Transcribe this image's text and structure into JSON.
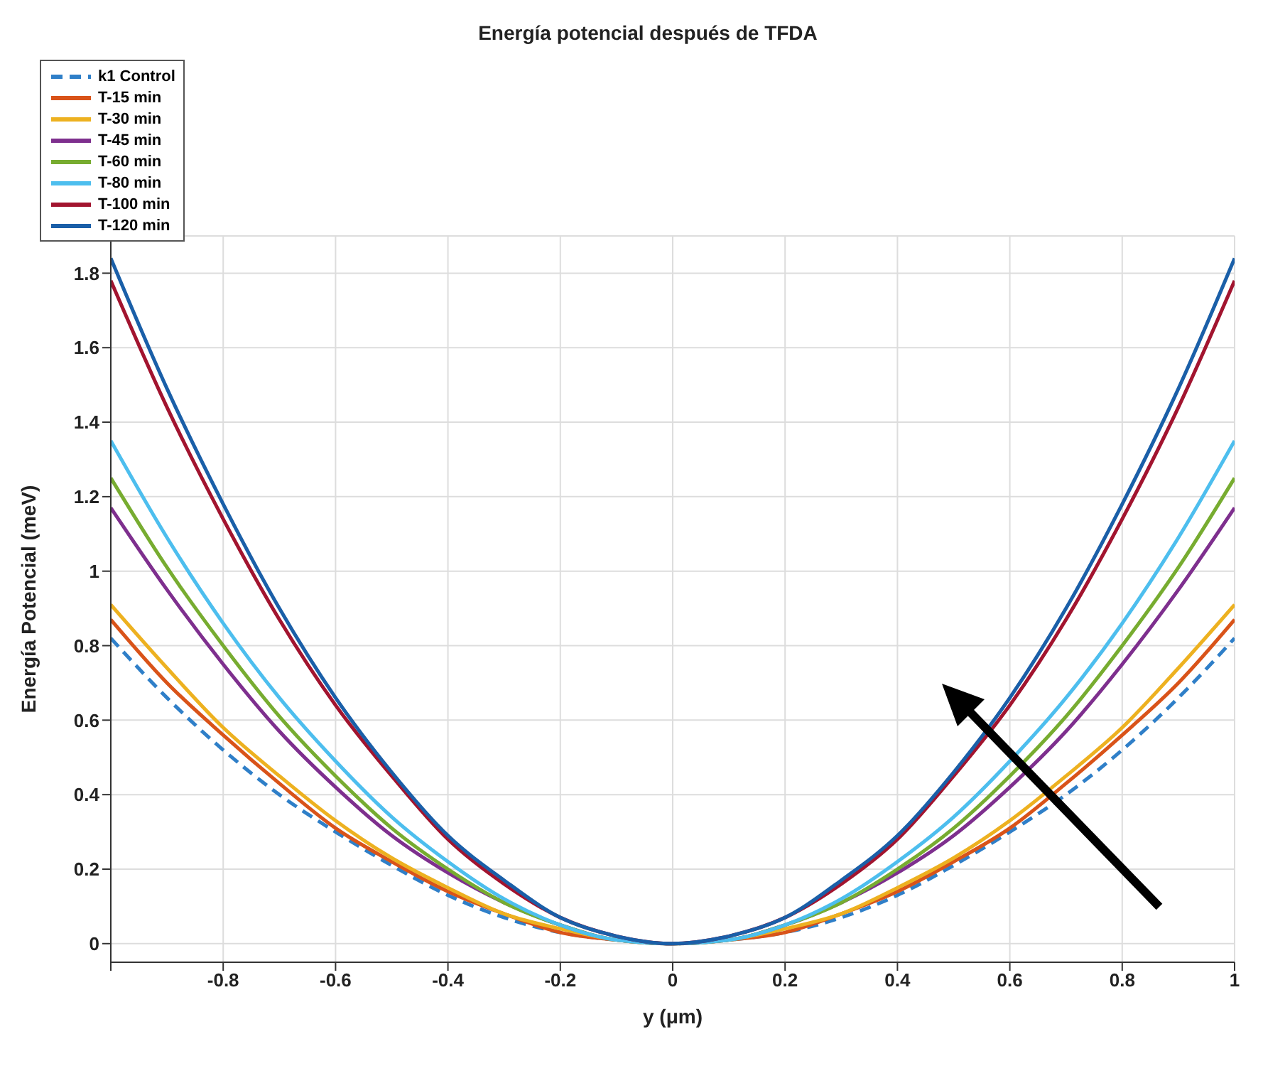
{
  "chart_data": {
    "type": "line",
    "title": "Energía potencial después de TFDA",
    "xlabel": "y (μm)",
    "ylabel": "Energía Potencial (meV)",
    "x": [
      -1,
      -0.9,
      -0.8,
      -0.7,
      -0.6,
      -0.5,
      -0.4,
      -0.3,
      -0.2,
      -0.1,
      0,
      0.1,
      0.2,
      0.3,
      0.4,
      0.5,
      0.6,
      0.7,
      0.8,
      0.9,
      1
    ],
    "series": [
      {
        "name": "k1 Control",
        "color": "#2f7fc8",
        "line_style": "dashed",
        "values": [
          0.82,
          0.66,
          0.52,
          0.4,
          0.3,
          0.21,
          0.13,
          0.07,
          0.03,
          0.01,
          0,
          0.01,
          0.03,
          0.07,
          0.13,
          0.21,
          0.3,
          0.4,
          0.52,
          0.66,
          0.82
        ]
      },
      {
        "name": "T-15 min",
        "color": "#d95319",
        "values": [
          0.87,
          0.7,
          0.56,
          0.43,
          0.31,
          0.22,
          0.14,
          0.08,
          0.03,
          0.01,
          0,
          0.01,
          0.03,
          0.08,
          0.14,
          0.22,
          0.31,
          0.43,
          0.56,
          0.7,
          0.87
        ]
      },
      {
        "name": "T-30 min",
        "color": "#edb120",
        "values": [
          0.91,
          0.74,
          0.58,
          0.45,
          0.33,
          0.23,
          0.15,
          0.08,
          0.04,
          0.01,
          0,
          0.01,
          0.04,
          0.08,
          0.15,
          0.23,
          0.33,
          0.45,
          0.58,
          0.74,
          0.91
        ]
      },
      {
        "name": "T-45 min",
        "color": "#7e2f8e",
        "values": [
          1.17,
          0.95,
          0.75,
          0.57,
          0.42,
          0.29,
          0.19,
          0.11,
          0.05,
          0.01,
          0,
          0.01,
          0.05,
          0.11,
          0.19,
          0.29,
          0.42,
          0.57,
          0.75,
          0.95,
          1.17
        ]
      },
      {
        "name": "T-60 min",
        "color": "#77ac30",
        "values": [
          1.25,
          1.01,
          0.8,
          0.61,
          0.45,
          0.31,
          0.2,
          0.11,
          0.05,
          0.01,
          0,
          0.01,
          0.05,
          0.11,
          0.2,
          0.31,
          0.45,
          0.61,
          0.8,
          1.01,
          1.25
        ]
      },
      {
        "name": "T-80 min",
        "color": "#4dbeee",
        "values": [
          1.35,
          1.09,
          0.86,
          0.66,
          0.49,
          0.34,
          0.22,
          0.12,
          0.05,
          0.01,
          0,
          0.01,
          0.05,
          0.12,
          0.22,
          0.34,
          0.49,
          0.66,
          0.86,
          1.09,
          1.35
        ]
      },
      {
        "name": "T-100 min",
        "color": "#a2142f",
        "values": [
          1.78,
          1.44,
          1.14,
          0.87,
          0.64,
          0.45,
          0.28,
          0.16,
          0.07,
          0.02,
          0,
          0.02,
          0.07,
          0.16,
          0.28,
          0.45,
          0.64,
          0.87,
          1.14,
          1.44,
          1.78
        ]
      },
      {
        "name": "T-120 min",
        "color": "#1a5fa8",
        "values": [
          1.84,
          1.49,
          1.18,
          0.9,
          0.66,
          0.46,
          0.29,
          0.17,
          0.07,
          0.02,
          0,
          0.02,
          0.07,
          0.17,
          0.29,
          0.46,
          0.66,
          0.9,
          1.18,
          1.49,
          1.84
        ]
      }
    ],
    "xlim": [
      -1,
      1
    ],
    "xticks": [
      {
        "value": -1,
        "label": null
      },
      -0.8,
      -0.6,
      -0.4,
      -0.2,
      0,
      0.2,
      0.4,
      0.6,
      0.8,
      1
    ],
    "ylim": [
      -0.05,
      1.9
    ],
    "yticks": [
      0,
      0.2,
      0.4,
      0.6,
      0.8,
      1,
      1.2,
      1.4,
      1.6,
      1.8
    ],
    "grid": true,
    "legend": "top",
    "marker": "none"
  }
}
